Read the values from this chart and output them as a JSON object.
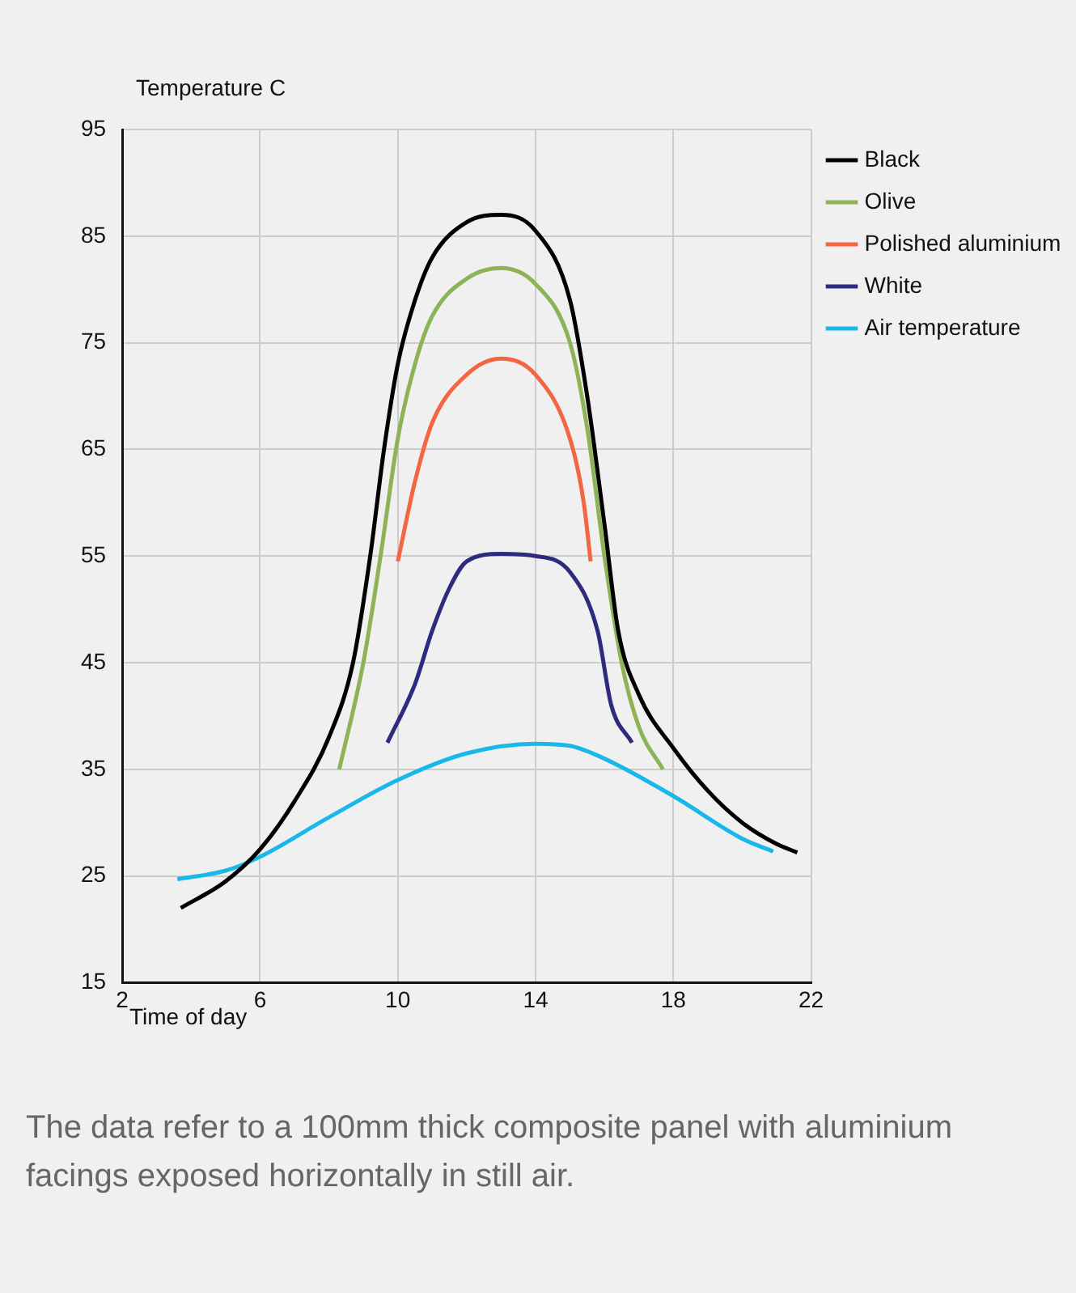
{
  "chart_data": {
    "type": "line",
    "ylabel": "Temperature C",
    "xlabel": "Time of day",
    "xlim": [
      2,
      22
    ],
    "xticks": [
      2,
      6,
      10,
      14,
      18,
      22
    ],
    "ylim": [
      15,
      95
    ],
    "yticks": [
      15,
      25,
      35,
      45,
      55,
      65,
      75,
      85,
      95
    ],
    "grid": true,
    "legend": "top right",
    "marker": "none",
    "line_style": "solid",
    "annotations": [
      "The data refer to a 100mm thick composite panel with aluminium facings exposed horizontally in still air."
    ],
    "series": [
      {
        "name": "Black",
        "color": "#000000",
        "x": [
          3.7,
          5,
          6,
          7,
          8,
          8.7,
          9.2,
          9.6,
          10,
          10.5,
          11,
          12,
          13,
          14,
          15,
          15.5,
          16,
          16.4,
          17,
          18,
          19,
          20,
          21,
          21.6
        ],
        "values": [
          22,
          24.5,
          27.5,
          32,
          38,
          45,
          55,
          65,
          73,
          79,
          83,
          86.3,
          87,
          85.5,
          79,
          70,
          58,
          48,
          42,
          37,
          33,
          30,
          28,
          27.2
        ]
      },
      {
        "name": "Olive",
        "color": "#8db357",
        "x": [
          8.3,
          9,
          9.5,
          10,
          10.5,
          11,
          12,
          13,
          14,
          15,
          15.5,
          16,
          16.5,
          17,
          17.7
        ],
        "values": [
          35,
          45,
          55,
          66,
          73,
          77.5,
          81,
          82,
          80.5,
          75,
          67,
          55,
          45,
          39,
          35
        ]
      },
      {
        "name": "Polished aluminium",
        "color": "#f26641",
        "x": [
          10,
          10.5,
          11,
          12,
          13,
          14,
          15,
          15.4,
          15.6
        ],
        "values": [
          54.5,
          62,
          67.5,
          72,
          73.5,
          72,
          66,
          60,
          54.5
        ]
      },
      {
        "name": "White",
        "color": "#2e2a7e",
        "x": [
          9.7,
          10.5,
          11,
          11.5,
          12,
          13,
          14,
          15,
          15.8,
          16.2,
          16.8
        ],
        "values": [
          37.5,
          43,
          48,
          52,
          54.5,
          55.2,
          55,
          53.5,
          48,
          41,
          37.5
        ]
      },
      {
        "name": "Air temperature",
        "color": "#1ab7ea",
        "x": [
          3.6,
          5,
          6,
          8,
          10,
          12,
          14,
          15,
          16,
          18,
          20,
          20.9
        ],
        "values": [
          24.7,
          25.5,
          26.8,
          30.5,
          34,
          36.5,
          37.4,
          37.2,
          36,
          32.5,
          28.5,
          27.3
        ]
      }
    ]
  }
}
